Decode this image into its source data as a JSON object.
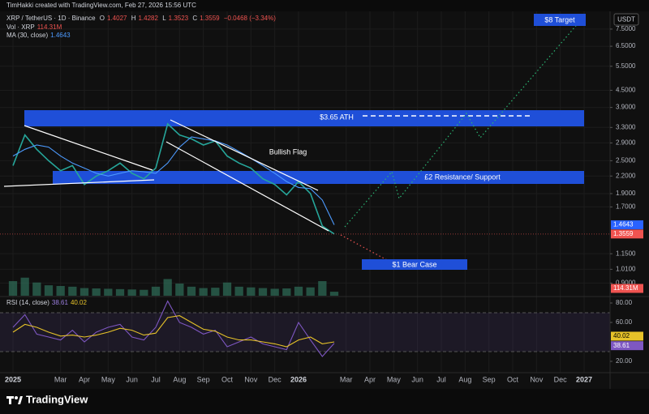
{
  "header": {
    "credit": "TimHakki created with TradingView.com, Feb 27, 2026 15:56 UTC",
    "ohlc": [
      {
        "label": "O",
        "value": 1.4027
      },
      {
        "label": "H",
        "value": 1.4282
      },
      {
        "label": "L",
        "value": 1.3523
      },
      {
        "label": "C",
        "value": 1.3559
      }
    ],
    "change": "−0.0468 (−3.34%)",
    "currency": "USDT"
  },
  "annotations": {
    "target": "$8 Target",
    "ath": "$3.65 ATH",
    "resistance": "£2 Resistance/ Support",
    "flag": "Bullish Flag",
    "bear": "$1 Bear Case"
  },
  "chart_data": [
    {
      "type": "line",
      "log_scale": true,
      "grid": true,
      "categories": [
        "2025",
        null,
        null,
        null,
        "Mar",
        null,
        "Apr",
        null,
        "May",
        null,
        "Jun",
        null,
        "Jul",
        null,
        "Aug",
        null,
        "Sep",
        null,
        "Oct",
        null,
        "Nov",
        null,
        "Dec",
        null,
        "2026",
        null,
        null,
        null,
        "Mar",
        null,
        "Apr",
        null,
        "May",
        null,
        "Jun",
        null,
        "Jul",
        null,
        "Aug",
        null,
        "Sep",
        null,
        "Oct",
        null,
        "Nov",
        null,
        "Dec",
        null,
        "2027"
      ],
      "series": [
        {
          "name": "XRP / TetherUS · 1D · Binance",
          "color": "#26a69a",
          "values": [
            2.4,
            3.1,
            2.75,
            2.5,
            2.3,
            2.4,
            2.05,
            2.2,
            2.3,
            2.45,
            2.25,
            2.15,
            2.35,
            3.4,
            3.1,
            3.0,
            2.85,
            2.95,
            2.6,
            2.45,
            2.35,
            2.15,
            2.05,
            1.88,
            2.1,
            1.9,
            1.45,
            1.3559,
            null,
            null,
            null,
            null,
            null,
            null,
            null,
            null,
            null,
            null,
            null,
            null,
            null,
            null,
            null,
            null,
            null,
            null,
            null,
            null,
            null
          ]
        },
        {
          "name": "MA (30, close)",
          "color": "#4d9bff",
          "values": [
            2.6,
            2.75,
            2.85,
            2.8,
            2.6,
            2.45,
            2.35,
            2.25,
            2.2,
            2.25,
            2.3,
            2.28,
            2.25,
            2.45,
            2.8,
            3.05,
            3.0,
            2.95,
            2.85,
            2.7,
            2.55,
            2.4,
            2.25,
            2.1,
            2.0,
            1.98,
            1.8,
            1.4643,
            null,
            null,
            null,
            null,
            null,
            null,
            null,
            null,
            null,
            null,
            null,
            null,
            null,
            null,
            null,
            null,
            null,
            null,
            null,
            null,
            null
          ]
        }
      ],
      "ylim": [
        0.81,
        8.64
      ],
      "yticks": [
        {
          "value": 7.5,
          "label": "7.5000"
        },
        {
          "value": 6.5,
          "label": "6.5000"
        },
        {
          "value": 5.5,
          "label": "5.5000"
        },
        {
          "value": 4.5,
          "label": "4.5000"
        },
        {
          "value": 3.9,
          "label": "3.9000"
        },
        {
          "value": 3.3,
          "label": "3.3000"
        },
        {
          "value": 2.9,
          "label": "2.9000"
        },
        {
          "value": 2.5,
          "label": "2.5000"
        },
        {
          "value": 2.2,
          "label": "2.2000"
        },
        {
          "value": 1.9,
          "label": "1.9000"
        },
        {
          "value": 1.7,
          "label": "1.7000"
        },
        {
          "value": 1.15,
          "label": "1.1500"
        },
        {
          "value": 1.01,
          "label": "1.0100"
        },
        {
          "value": 0.9,
          "label": "0.9000"
        }
      ]
    },
    {
      "type": "bar",
      "series": [
        {
          "name": "Vol · XRP",
          "color": "#2f6f5a",
          "last_label": "114.31M",
          "values": [
            420,
            520,
            380,
            300,
            280,
            260,
            220,
            210,
            200,
            190,
            180,
            170,
            260,
            480,
            350,
            260,
            220,
            230,
            380,
            260,
            240,
            220,
            200,
            210,
            260,
            240,
            420,
            114.31,
            null,
            null,
            null,
            null,
            null,
            null,
            null,
            null,
            null,
            null,
            null,
            null,
            null,
            null,
            null,
            null,
            null,
            null,
            null,
            null,
            null
          ]
        }
      ],
      "ylim": [
        0,
        700
      ]
    },
    {
      "type": "line",
      "title": "RSI (14, close)",
      "band": [
        30,
        70
      ],
      "series": [
        {
          "color": "#7e57c2",
          "values": [
            55,
            68,
            48,
            45,
            42,
            52,
            40,
            50,
            55,
            58,
            45,
            42,
            55,
            82,
            60,
            55,
            48,
            52,
            35,
            40,
            45,
            38,
            35,
            32,
            60,
            42,
            25,
            38.61,
            null,
            null,
            null,
            null,
            null,
            null,
            null,
            null,
            null,
            null,
            null,
            null,
            null,
            null,
            null,
            null,
            null,
            null,
            null,
            null,
            null
          ]
        },
        {
          "color": "#e6c229",
          "values": [
            50,
            58,
            55,
            50,
            46,
            47,
            45,
            47,
            50,
            54,
            52,
            47,
            49,
            65,
            67,
            60,
            53,
            51,
            45,
            42,
            42,
            40,
            38,
            35,
            42,
            45,
            38,
            40.02,
            null,
            null,
            null,
            null,
            null,
            null,
            null,
            null,
            null,
            null,
            null,
            null,
            null,
            null,
            null,
            null,
            null,
            null,
            null,
            null,
            null
          ]
        }
      ],
      "ylim": [
        10,
        85
      ],
      "yticks": [
        {
          "value": 80,
          "label": "80.00"
        },
        {
          "value": 60,
          "label": "60.00"
        },
        {
          "value": 20,
          "label": "20.00"
        }
      ]
    }
  ],
  "footer": {
    "logo": "TradingView"
  }
}
